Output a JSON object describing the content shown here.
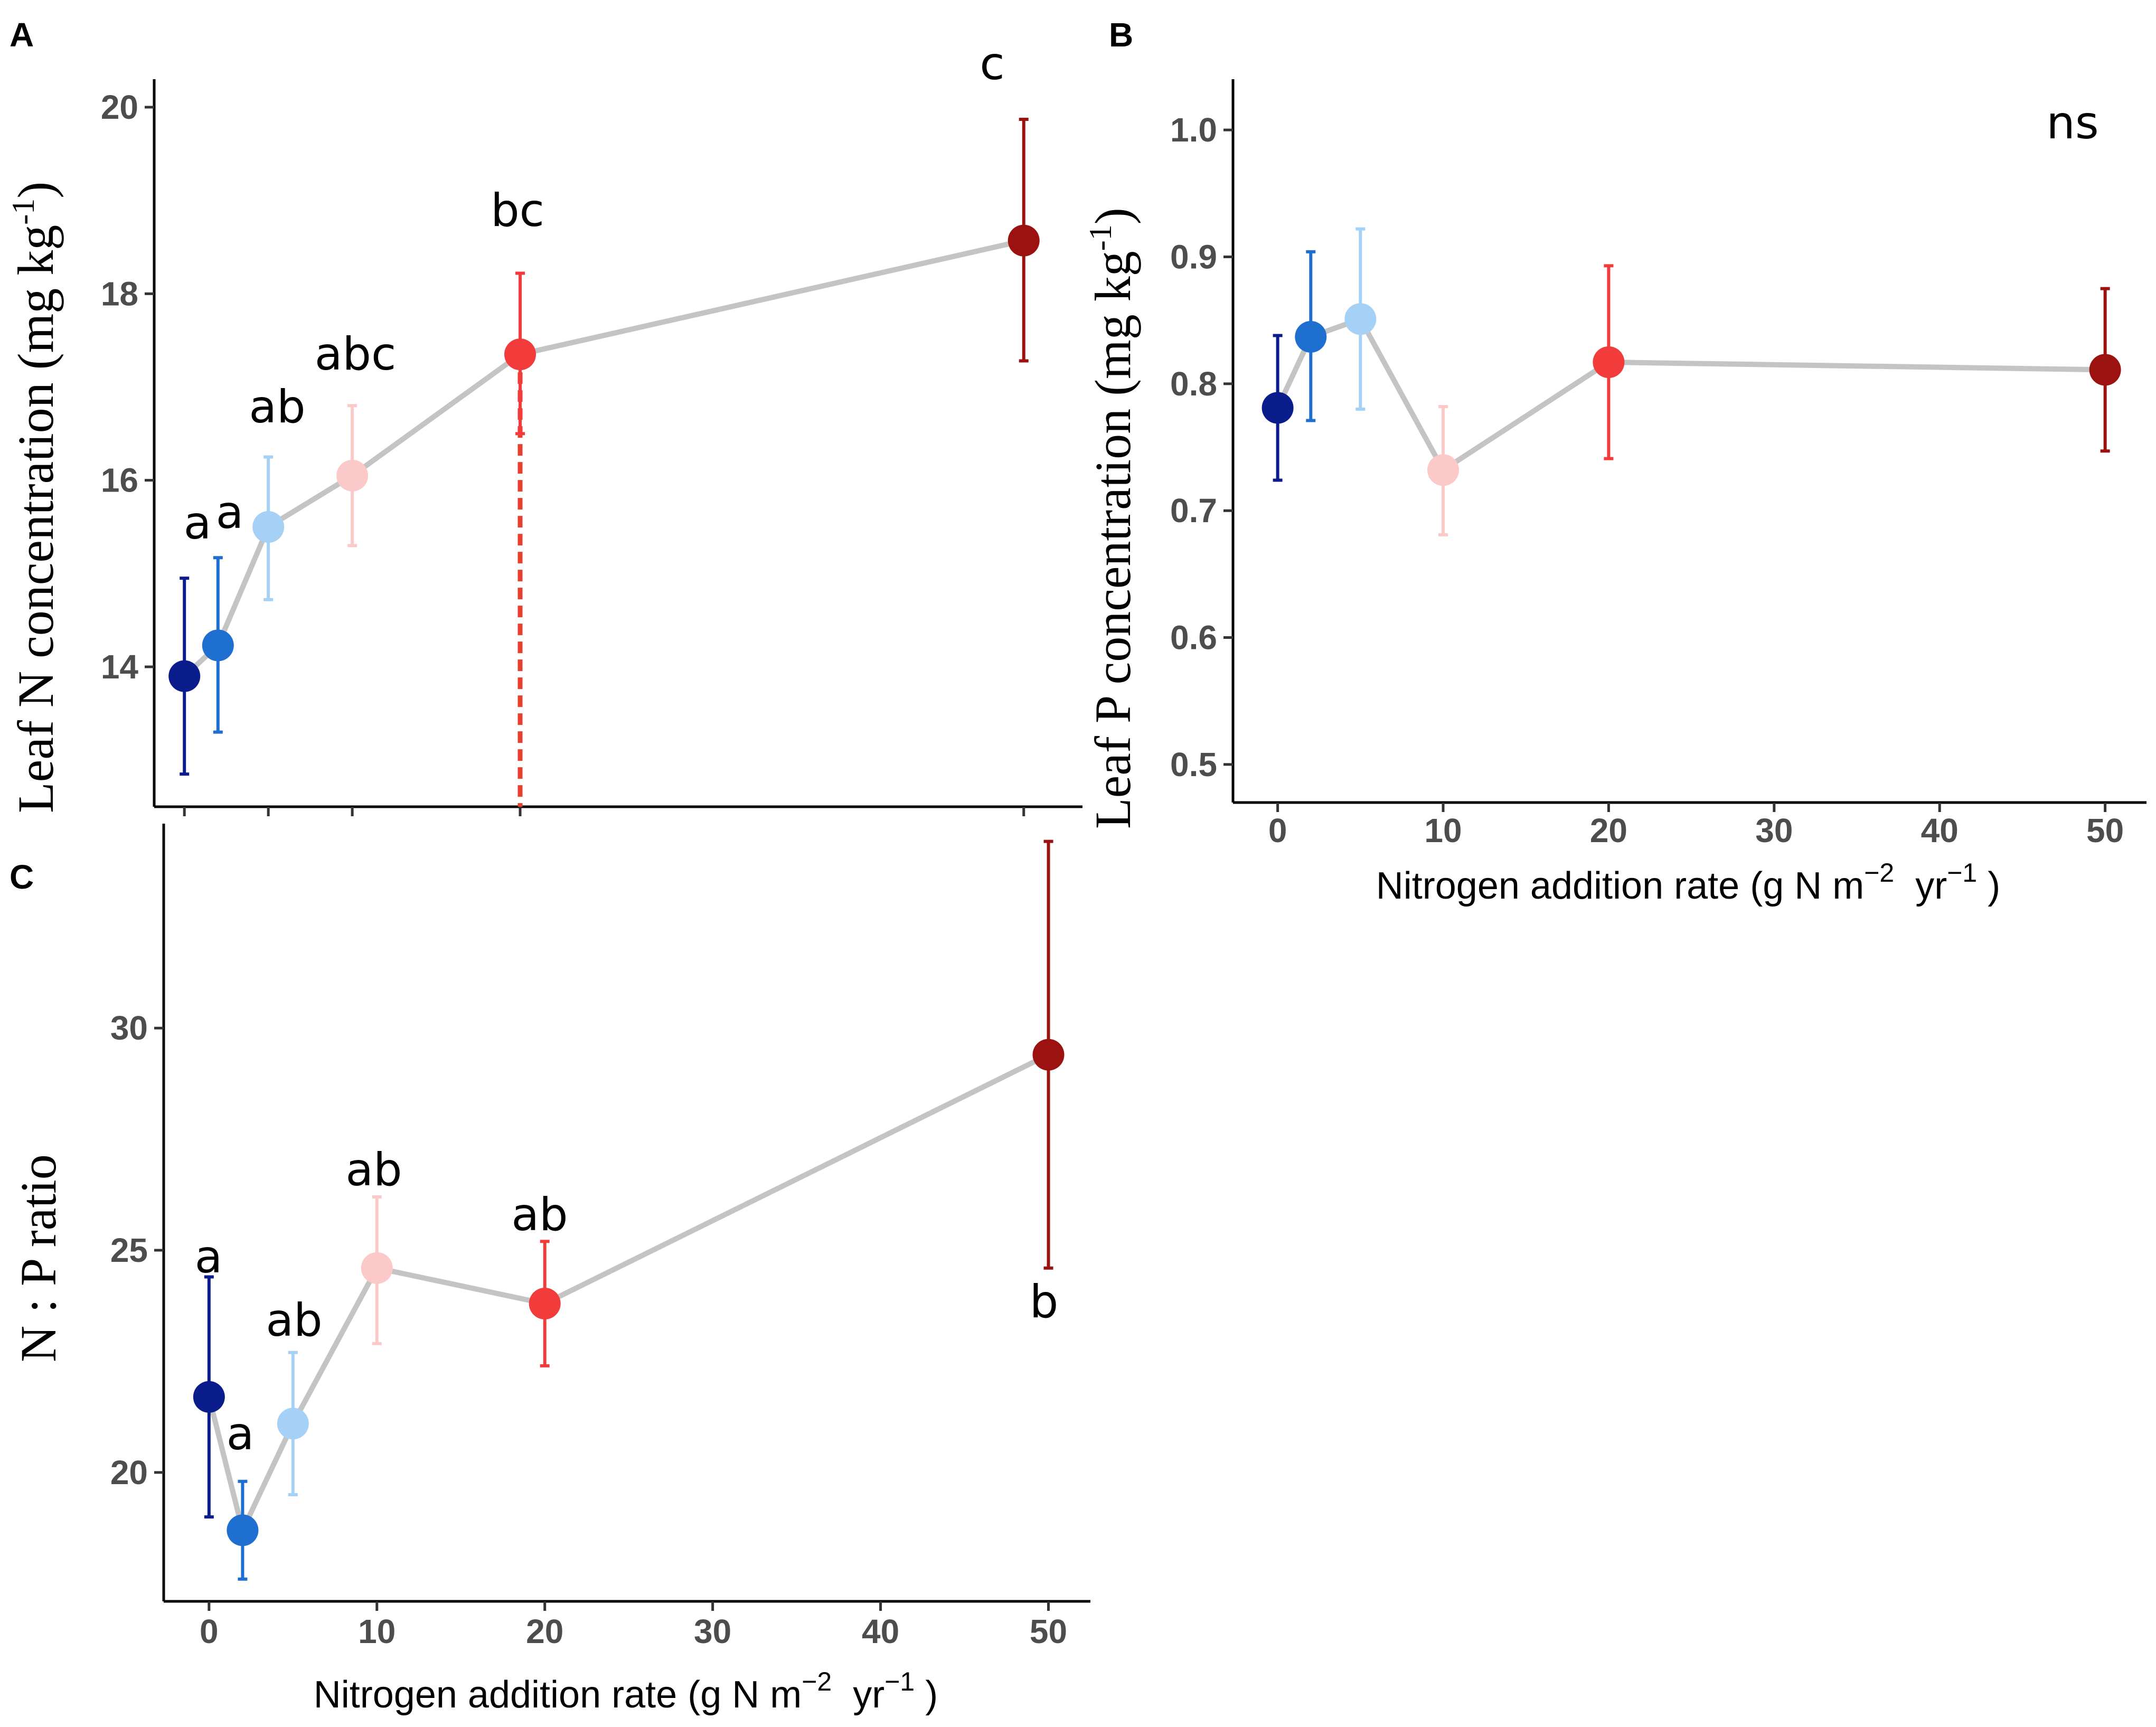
{
  "chart_data": [
    {
      "type": "line",
      "panel": "A",
      "title": "",
      "ylabel": "Leaf N concentration (mg kg",
      "ylabel_sup": "-1",
      "ylabel_end": ")",
      "xlabel": "",
      "ylim": [
        12.5,
        20.3
      ],
      "yticks": [
        14,
        16,
        18,
        20
      ],
      "xlim": [
        -1.8,
        53.5
      ],
      "x": [
        0,
        2,
        5,
        10,
        20,
        50
      ],
      "values": [
        13.9,
        14.23,
        15.5,
        16.05,
        17.35,
        18.57
      ],
      "lower": [
        12.85,
        13.3,
        14.72,
        15.3,
        16.5,
        17.28
      ],
      "upper": [
        14.95,
        15.17,
        16.25,
        16.8,
        18.22,
        19.87
      ],
      "sig_labels": [
        "a",
        "a",
        "ab",
        "abc",
        "bc",
        "c"
      ],
      "colors": [
        "#0b1d8c",
        "#1f6fd1",
        "#a6d1f7",
        "#fcc9c9",
        "#f23b3b",
        "#9b1210"
      ],
      "threshold_x": 20
    },
    {
      "type": "line",
      "panel": "B",
      "title": "",
      "ylabel": "Leaf P concentration (mg kg",
      "ylabel_sup": "-1",
      "ylabel_end": ")",
      "xlabel": "Nitrogen addition rate (g N m",
      "xlabel_sup1": "−2",
      "xlabel_mid": "yr",
      "xlabel_sup2": "−1",
      "xlabel_end": ")",
      "ylim": [
        0.47,
        1.04
      ],
      "yticks": [
        "0.5",
        "0.6",
        "0.7",
        "0.8",
        "0.9",
        "1.0"
      ],
      "xlim": [
        -2.7,
        52.5
      ],
      "xticks": [
        0,
        10,
        20,
        30,
        40,
        50
      ],
      "x": [
        0,
        2,
        5,
        10,
        20,
        50
      ],
      "values": [
        0.781,
        0.837,
        0.851,
        0.732,
        0.817,
        0.811
      ],
      "lower": [
        0.724,
        0.771,
        0.78,
        0.681,
        0.741,
        0.747
      ],
      "upper": [
        0.838,
        0.904,
        0.922,
        0.782,
        0.893,
        0.875
      ],
      "annotation": "ns",
      "colors": [
        "#0b1d8c",
        "#1f6fd1",
        "#a6d1f7",
        "#fcc9c9",
        "#f23b3b",
        "#9b1210"
      ]
    },
    {
      "type": "line",
      "panel": "C",
      "title": "",
      "ylabel": "N : P ratio",
      "xlabel": "Nitrogen addition rate (g N m",
      "xlabel_sup1": "−2",
      "xlabel_mid": "yr",
      "xlabel_sup2": "−1",
      "xlabel_end": ")",
      "ylim": [
        17.1,
        34.6
      ],
      "yticks": [
        20,
        25,
        30
      ],
      "xlim": [
        -2.7,
        52.5
      ],
      "xticks": [
        0,
        10,
        20,
        30,
        40,
        50
      ],
      "x": [
        0,
        2,
        5,
        10,
        20,
        50
      ],
      "values": [
        21.7,
        18.7,
        21.1,
        24.6,
        23.8,
        29.4
      ],
      "lower": [
        19.0,
        17.6,
        19.5,
        22.9,
        22.4,
        24.6
      ],
      "upper": [
        24.4,
        19.8,
        22.7,
        26.2,
        25.2,
        34.2
      ],
      "sig_labels": [
        "a",
        "a",
        "ab",
        "ab",
        "ab",
        "b"
      ],
      "colors": [
        "#0b1d8c",
        "#1f6fd1",
        "#a6d1f7",
        "#fcc9c9",
        "#f23b3b",
        "#9b1210"
      ]
    }
  ]
}
